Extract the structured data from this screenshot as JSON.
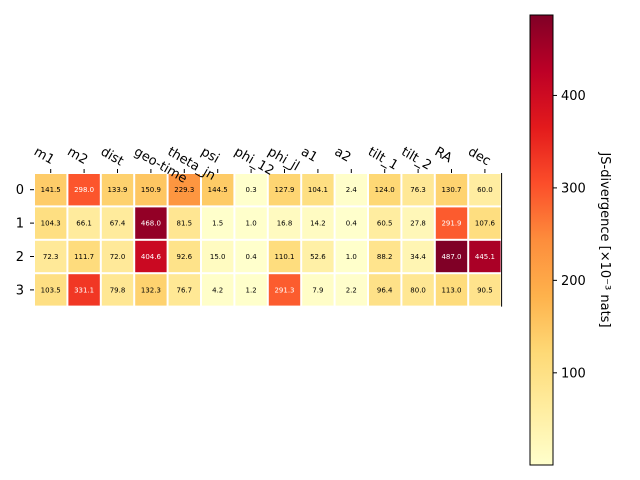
{
  "chart_data": {
    "type": "heatmap",
    "colormap": "YlOrRd",
    "x_tick_labels": [
      "m1",
      "m2",
      "dist",
      "geo-time",
      "theta_jn",
      "psi",
      "phi_12",
      "phi_jl",
      "a1",
      "a2",
      "tilt_1",
      "tilt_2",
      "RA",
      "dec"
    ],
    "y_tick_labels": [
      "0",
      "1",
      "2",
      "3"
    ],
    "values": [
      [
        141.5,
        298.0,
        133.9,
        150.9,
        229.3,
        144.5,
        0.3,
        127.9,
        104.1,
        2.4,
        124.0,
        76.3,
        130.7,
        60.0
      ],
      [
        104.3,
        66.1,
        67.4,
        468.0,
        81.5,
        1.5,
        1.0,
        16.8,
        14.2,
        0.4,
        60.5,
        27.8,
        291.9,
        107.6
      ],
      [
        72.3,
        111.7,
        72.0,
        404.6,
        92.6,
        15.0,
        0.4,
        110.1,
        52.6,
        1.0,
        88.2,
        34.4,
        487.0,
        445.1
      ],
      [
        103.5,
        331.1,
        79.8,
        132.3,
        76.7,
        4.2,
        1.2,
        291.3,
        7.9,
        2.2,
        96.4,
        80.0,
        113.0,
        90.5
      ]
    ],
    "color_range": [
      0.3,
      487.0
    ],
    "colorbar": {
      "ticks": [
        100,
        200,
        300,
        400
      ],
      "label": "JS-divergence [×10⁻³ nats]"
    }
  }
}
